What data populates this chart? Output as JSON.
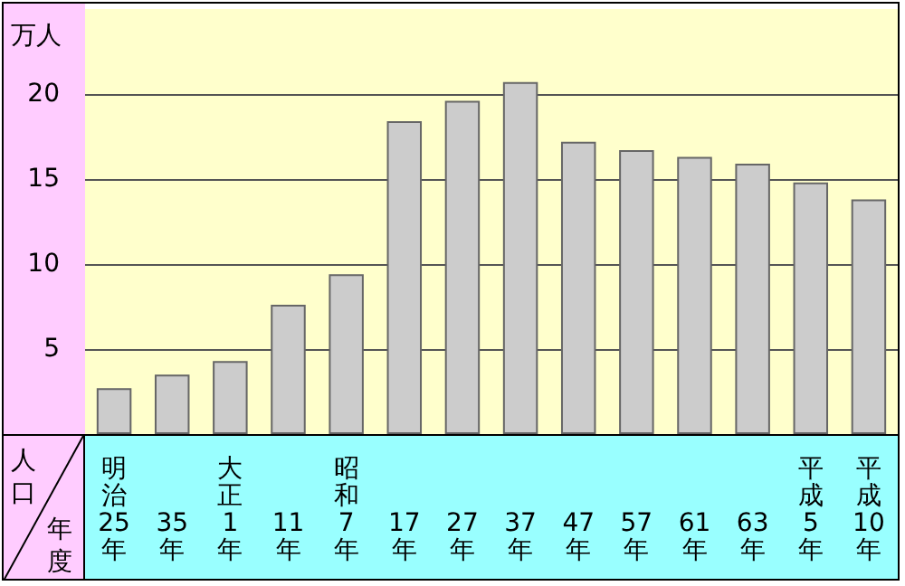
{
  "chart_data": {
    "type": "bar",
    "ylabel": "万人",
    "xlabel": "年度",
    "annotations": [
      "人口"
    ],
    "categories": [
      "明治25年",
      "35年",
      "大正1年",
      "11年",
      "昭和7年",
      "17年",
      "27年",
      "37年",
      "47年",
      "57年",
      "61年",
      "63年",
      "平成5年",
      "平成10年"
    ],
    "values": [
      2.7,
      3.5,
      4.3,
      7.6,
      9.4,
      18.4,
      19.6,
      20.7,
      17.2,
      16.7,
      16.3,
      15.9,
      14.8,
      13.8
    ],
    "color": "#cccccc",
    "ylim": [
      0,
      25
    ],
    "yticks": [
      5,
      10,
      15,
      20
    ],
    "grid": "y"
  }
}
